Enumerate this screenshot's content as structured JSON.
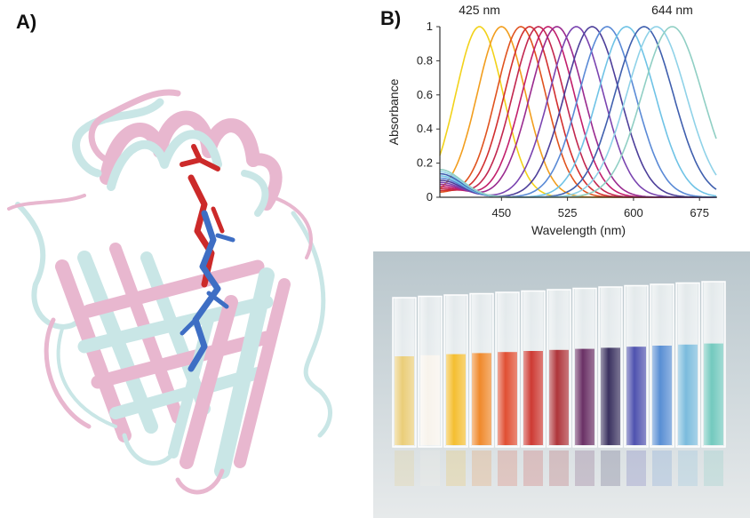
{
  "panels": {
    "a": "A)",
    "b": "B)"
  },
  "chart_data": {
    "type": "line",
    "xlabel": "Wavelength (nm)",
    "ylabel": "Absorbance",
    "xlim": [
      380,
      695
    ],
    "ylim": [
      0,
      1
    ],
    "xticks": [
      450,
      525,
      600,
      675
    ],
    "yticks": [
      0,
      0.2,
      0.4,
      0.6,
      0.8,
      1
    ],
    "annotations": [
      {
        "text": "425 nm",
        "x": 425
      },
      {
        "text": "644 nm",
        "x": 644
      }
    ],
    "series": [
      {
        "peak": 425,
        "color": "#f2d21a"
      },
      {
        "peak": 450,
        "color": "#f29e1e"
      },
      {
        "peak": 472,
        "color": "#e0531f"
      },
      {
        "peak": 482,
        "color": "#d22f2f"
      },
      {
        "peak": 492,
        "color": "#c2274f"
      },
      {
        "peak": 503,
        "color": "#c21f6c"
      },
      {
        "peak": 513,
        "color": "#9a2a8f"
      },
      {
        "peak": 535,
        "color": "#7a44b0"
      },
      {
        "peak": 553,
        "color": "#4d3f9a"
      },
      {
        "peak": 570,
        "color": "#5a8ad6"
      },
      {
        "peak": 592,
        "color": "#6fc3e6"
      },
      {
        "peak": 612,
        "color": "#3f5fae"
      },
      {
        "peak": 626,
        "color": "#8fd2e8"
      },
      {
        "peak": 644,
        "color": "#90cfc4"
      }
    ]
  },
  "cuvettes": [
    "#e8c86a",
    "#f7f2ea",
    "#f3b71a",
    "#ee7c14",
    "#dd3b1c",
    "#c8241c",
    "#a61e24",
    "#5a1a55",
    "#241a4d",
    "#3b3fa6",
    "#4682cf",
    "#6cb4d9",
    "#63c3b7"
  ]
}
